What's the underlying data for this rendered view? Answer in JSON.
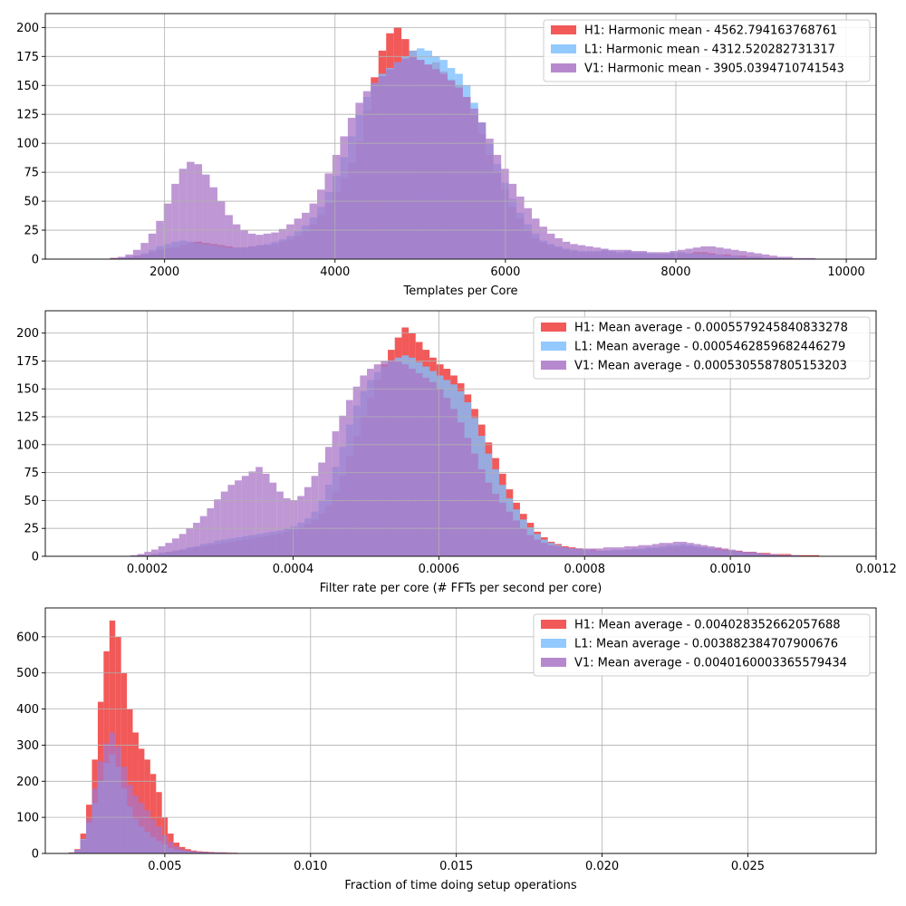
{
  "colors": {
    "H1": "#f03c3c",
    "L1": "#7fbfff",
    "V1": "#a974c5"
  },
  "chart_data": [
    {
      "type": "histogram",
      "xlabel": "Templates per Core",
      "ylabel": "",
      "xlim": [
        600,
        10350
      ],
      "ylim": [
        0,
        212
      ],
      "xticks": [
        2000,
        4000,
        6000,
        8000,
        10000
      ],
      "yticks": [
        0,
        25,
        50,
        75,
        100,
        125,
        150,
        175,
        200
      ],
      "grid": true,
      "legend_position": "top-right",
      "bin_range": [
        1000,
        10000
      ],
      "bins": 100,
      "series": [
        {
          "name": "H1: Harmonic mean  - 4562.794163768761",
          "color": "#f03c3c",
          "values": [
            0,
            0,
            0,
            0,
            1,
            1,
            2,
            3,
            4,
            6,
            8,
            9,
            10,
            12,
            14,
            15,
            14,
            13,
            12,
            11,
            10,
            10,
            11,
            12,
            12,
            13,
            15,
            17,
            20,
            24,
            30,
            38,
            48,
            58,
            70,
            83,
            102,
            128,
            157,
            180,
            195,
            200,
            190,
            180,
            172,
            168,
            170,
            162,
            155,
            150,
            140,
            125,
            108,
            90,
            75,
            60,
            45,
            35,
            25,
            18,
            14,
            12,
            10,
            8,
            7,
            6,
            6,
            6,
            7,
            6,
            5,
            6,
            5,
            5,
            4,
            4,
            4,
            5,
            5,
            5,
            6,
            6,
            5,
            4,
            4,
            3,
            3,
            2,
            2,
            1,
            1,
            1,
            0,
            0,
            0,
            0,
            0,
            0,
            0,
            0
          ]
        },
        {
          "name": "L1: Harmonic mean  - 4312.520282731317",
          "color": "#7fbfff",
          "values": [
            0,
            0,
            0,
            0,
            0,
            1,
            2,
            3,
            5,
            8,
            11,
            13,
            15,
            16,
            15,
            14,
            13,
            12,
            11,
            10,
            10,
            10,
            11,
            12,
            13,
            15,
            17,
            20,
            24,
            29,
            36,
            45,
            58,
            72,
            88,
            106,
            125,
            140,
            152,
            160,
            165,
            170,
            175,
            180,
            182,
            180,
            175,
            172,
            165,
            160,
            150,
            135,
            118,
            100,
            82,
            66,
            52,
            40,
            30,
            22,
            16,
            13,
            11,
            9,
            8,
            7,
            7,
            7,
            8,
            7,
            6,
            7,
            6,
            6,
            5,
            5,
            5,
            6,
            6,
            5,
            5,
            5,
            4,
            4,
            3,
            3,
            2,
            2,
            2,
            1,
            1,
            1,
            1,
            0,
            0,
            0,
            0,
            0,
            0,
            0
          ]
        },
        {
          "name": "V1: Harmonic mean  - 3905.0394710741543",
          "color": "#a974c5",
          "values": [
            0,
            0,
            0,
            0,
            1,
            2,
            4,
            8,
            14,
            22,
            33,
            48,
            65,
            78,
            84,
            82,
            73,
            62,
            50,
            38,
            30,
            25,
            22,
            21,
            22,
            23,
            26,
            30,
            35,
            40,
            48,
            60,
            74,
            90,
            106,
            122,
            135,
            145,
            152,
            158,
            164,
            170,
            173,
            175,
            172,
            168,
            164,
            160,
            154,
            148,
            140,
            130,
            118,
            104,
            90,
            78,
            65,
            54,
            44,
            35,
            28,
            22,
            18,
            15,
            13,
            12,
            11,
            10,
            9,
            8,
            8,
            8,
            7,
            7,
            6,
            6,
            6,
            7,
            8,
            9,
            10,
            11,
            11,
            10,
            9,
            8,
            7,
            6,
            5,
            4,
            3,
            2,
            2,
            1,
            1,
            1,
            0,
            0,
            0,
            0
          ]
        }
      ]
    },
    {
      "type": "histogram",
      "xlabel": "Filter rate per core (# FFTs per second per core)",
      "ylabel": "",
      "xlim": [
        6e-05,
        0.0012
      ],
      "ylim": [
        0,
        220
      ],
      "xticks": [
        "0.0002",
        "0.0004",
        "0.0006",
        "0.0008",
        "0.0010",
        "0.0012"
      ],
      "xtick_values": [
        0.0002,
        0.0004,
        0.0006,
        0.0008,
        0.001,
        0.0012
      ],
      "yticks": [
        0,
        25,
        50,
        75,
        100,
        125,
        150,
        175,
        200
      ],
      "grid": true,
      "legend_position": "top-right",
      "bin_range": [
        0.00011,
        0.00116
      ],
      "bins": 110,
      "series": [
        {
          "name": "H1: Mean average - 0.0005579245840833278",
          "color": "#f03c3c",
          "values": [
            0,
            0,
            0,
            0,
            0,
            0,
            0,
            0,
            1,
            1,
            2,
            3,
            4,
            5,
            6,
            7,
            8,
            9,
            10,
            11,
            12,
            13,
            14,
            15,
            16,
            17,
            18,
            19,
            20,
            22,
            24,
            26,
            29,
            33,
            38,
            46,
            58,
            72,
            90,
            108,
            126,
            142,
            158,
            172,
            185,
            196,
            205,
            200,
            192,
            185,
            178,
            172,
            168,
            162,
            155,
            145,
            132,
            118,
            102,
            88,
            74,
            60,
            48,
            38,
            30,
            22,
            17,
            13,
            11,
            9,
            8,
            7,
            6,
            6,
            5,
            5,
            5,
            5,
            6,
            6,
            6,
            7,
            7,
            7,
            8,
            8,
            9,
            9,
            8,
            8,
            7,
            7,
            6,
            5,
            5,
            4,
            4,
            3,
            3,
            2,
            2,
            2,
            1,
            1,
            1,
            1,
            0,
            0,
            0,
            0
          ]
        },
        {
          "name": "L1: Mean average - 0.0005462859682446279",
          "color": "#7fbfff",
          "values": [
            0,
            0,
            0,
            0,
            0,
            0,
            0,
            0,
            1,
            1,
            2,
            3,
            4,
            5,
            6,
            8,
            9,
            11,
            12,
            14,
            15,
            16,
            17,
            18,
            19,
            20,
            21,
            22,
            23,
            25,
            27,
            30,
            34,
            40,
            50,
            64,
            80,
            98,
            118,
            135,
            148,
            158,
            165,
            170,
            174,
            178,
            180,
            178,
            174,
            170,
            166,
            162,
            158,
            154,
            148,
            138,
            124,
            108,
            92,
            78,
            64,
            52,
            42,
            33,
            26,
            20,
            15,
            12,
            10,
            8,
            7,
            6,
            6,
            5,
            5,
            5,
            6,
            6,
            6,
            7,
            7,
            8,
            8,
            9,
            10,
            10,
            11,
            10,
            9,
            8,
            7,
            6,
            5,
            5,
            4,
            3,
            3,
            2,
            2,
            1,
            1,
            1,
            1,
            0,
            0,
            0,
            0,
            0,
            0,
            0
          ]
        },
        {
          "name": "V1: Mean average - 0.0005305587805153203",
          "color": "#a974c5",
          "values": [
            0,
            0,
            0,
            0,
            0,
            0,
            0,
            1,
            2,
            4,
            6,
            9,
            12,
            16,
            20,
            25,
            30,
            36,
            43,
            51,
            58,
            64,
            68,
            72,
            76,
            80,
            74,
            66,
            58,
            52,
            50,
            54,
            62,
            72,
            84,
            98,
            112,
            126,
            140,
            152,
            162,
            168,
            172,
            175,
            176,
            175,
            172,
            168,
            164,
            160,
            156,
            150,
            142,
            132,
            120,
            106,
            92,
            78,
            66,
            56,
            48,
            40,
            32,
            25,
            19,
            15,
            12,
            10,
            9,
            8,
            7,
            7,
            7,
            7,
            7,
            8,
            8,
            8,
            9,
            9,
            10,
            10,
            11,
            12,
            12,
            13,
            13,
            12,
            11,
            10,
            9,
            8,
            7,
            6,
            5,
            4,
            4,
            3,
            2,
            2,
            1,
            1,
            1,
            0,
            0,
            0,
            0,
            0,
            0,
            0
          ]
        }
      ]
    },
    {
      "type": "histogram",
      "xlabel": "Fraction of time doing setup operations",
      "ylabel": "",
      "xlim": [
        0.0009,
        0.0294
      ],
      "ylim": [
        0,
        680
      ],
      "xticks": [
        "0.005",
        "0.010",
        "0.015",
        "0.020",
        "0.025"
      ],
      "xtick_values": [
        0.005,
        0.01,
        0.015,
        0.02,
        0.025
      ],
      "yticks": [
        0,
        100,
        200,
        300,
        400,
        500,
        600
      ],
      "grid": true,
      "legend_position": "top-right",
      "bin_range": [
        0.0017,
        0.0081
      ],
      "bins": 32,
      "series": [
        {
          "name": "H1: Mean average - 0.004028352662057688",
          "color": "#f03c3c",
          "values": [
            3,
            12,
            55,
            135,
            260,
            420,
            560,
            645,
            600,
            500,
            400,
            335,
            290,
            260,
            220,
            170,
            100,
            55,
            30,
            18,
            12,
            8,
            6,
            5,
            4,
            3,
            3,
            2,
            2,
            1,
            1,
            1
          ]
        },
        {
          "name": "L1: Mean average - 0.003882384707900676",
          "color": "#7fbfff",
          "values": [
            2,
            10,
            40,
            85,
            140,
            200,
            250,
            275,
            240,
            180,
            130,
            95,
            75,
            60,
            45,
            35,
            25,
            15,
            10,
            7,
            5,
            4,
            3,
            3,
            2,
            2,
            1,
            1,
            1,
            1,
            0,
            0
          ]
        },
        {
          "name": "V1: Mean average - 0.0040160003365579434",
          "color": "#a974c5",
          "values": [
            2,
            10,
            38,
            95,
            180,
            255,
            305,
            335,
            295,
            240,
            190,
            160,
            140,
            120,
            95,
            75,
            50,
            32,
            20,
            12,
            8,
            6,
            5,
            4,
            3,
            3,
            2,
            2,
            1,
            1,
            1,
            1
          ]
        }
      ]
    }
  ]
}
